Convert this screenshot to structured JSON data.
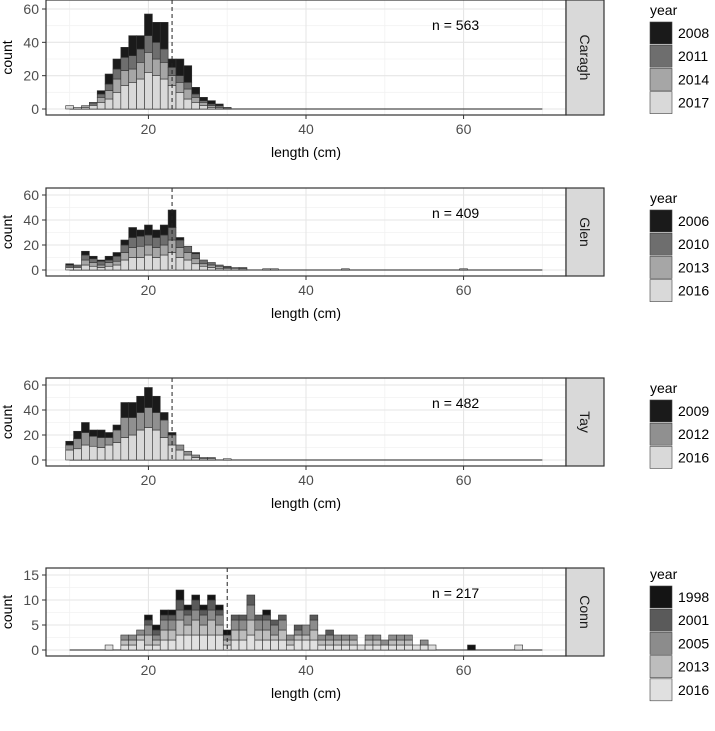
{
  "chart_data": [
    {
      "type": "bar",
      "stacked": true,
      "facet": "Caragh",
      "annotation": "n = 563",
      "xlabel": "length (cm)",
      "ylabel": "count",
      "xlim": [
        10,
        70
      ],
      "ylim": [
        0,
        60
      ],
      "xticks": [
        "20",
        "40",
        "60"
      ],
      "yticks": [
        "0",
        "20",
        "40",
        "60"
      ],
      "vline": 23,
      "legend_title": "year",
      "grid": true,
      "bin_width": 1,
      "x": [
        10,
        11,
        12,
        13,
        14,
        15,
        16,
        17,
        18,
        19,
        20,
        21,
        22,
        23,
        24,
        25,
        26,
        27,
        28,
        29,
        30,
        31
      ],
      "series": [
        {
          "name": "2017",
          "color": "#d9d9d9",
          "values": [
            2,
            1,
            1,
            2,
            4,
            6,
            10,
            14,
            16,
            18,
            22,
            20,
            18,
            14,
            10,
            6,
            4,
            2,
            1,
            0,
            0,
            0
          ]
        },
        {
          "name": "2014",
          "color": "#a6a6a6",
          "values": [
            0,
            0,
            1,
            1,
            3,
            5,
            8,
            9,
            8,
            10,
            12,
            10,
            10,
            6,
            6,
            6,
            3,
            2,
            1,
            1,
            0,
            0
          ]
        },
        {
          "name": "2011",
          "color": "#6e6e6e",
          "values": [
            0,
            0,
            0,
            1,
            2,
            4,
            6,
            8,
            8,
            8,
            10,
            10,
            8,
            5,
            4,
            4,
            2,
            1,
            1,
            1,
            1,
            0
          ]
        },
        {
          "name": "2008",
          "color": "#1a1a1a",
          "values": [
            0,
            0,
            0,
            0,
            2,
            6,
            6,
            6,
            12,
            8,
            13,
            12,
            16,
            5,
            10,
            10,
            4,
            2,
            2,
            1,
            0,
            0
          ]
        }
      ]
    },
    {
      "type": "bar",
      "stacked": true,
      "facet": "Glen",
      "annotation": "n = 409",
      "xlabel": "length (cm)",
      "ylabel": "count",
      "xlim": [
        10,
        70
      ],
      "ylim": [
        0,
        60
      ],
      "xticks": [
        "20",
        "40",
        "60"
      ],
      "yticks": [
        "0",
        "20",
        "40",
        "60"
      ],
      "vline": 23,
      "legend_title": "year",
      "grid": true,
      "bin_width": 1,
      "x": [
        10,
        11,
        12,
        13,
        14,
        15,
        16,
        17,
        18,
        19,
        20,
        21,
        22,
        23,
        24,
        25,
        26,
        27,
        28,
        29,
        30,
        31,
        32,
        33,
        34,
        35,
        36,
        37,
        38,
        39,
        40,
        41,
        42,
        43,
        44,
        45,
        46,
        47,
        48,
        49,
        50,
        51,
        52,
        53,
        54,
        55,
        56,
        57,
        58,
        59,
        60
      ],
      "series": [
        {
          "name": "2016",
          "color": "#d9d9d9",
          "values": [
            2,
            2,
            4,
            3,
            2,
            3,
            4,
            8,
            10,
            10,
            12,
            10,
            12,
            14,
            10,
            8,
            5,
            3,
            2,
            1,
            1,
            1,
            0,
            0,
            0,
            0,
            0,
            0,
            0,
            0,
            0,
            0,
            0,
            0,
            0,
            0,
            0,
            0,
            0,
            0,
            0,
            0,
            0,
            0,
            0,
            0,
            0,
            0,
            0,
            0,
            0
          ]
        },
        {
          "name": "2013",
          "color": "#a6a6a6",
          "values": [
            1,
            1,
            4,
            3,
            2,
            3,
            3,
            6,
            8,
            9,
            8,
            8,
            8,
            10,
            8,
            6,
            4,
            2,
            2,
            2,
            1,
            1,
            1,
            0,
            0,
            1,
            1,
            0,
            0,
            0,
            0,
            0,
            0,
            0,
            0,
            1,
            0,
            0,
            0,
            0,
            0,
            0,
            0,
            0,
            0,
            0,
            0,
            0,
            0,
            0,
            1
          ]
        },
        {
          "name": "2010",
          "color": "#6e6e6e",
          "values": [
            1,
            1,
            4,
            3,
            3,
            2,
            4,
            6,
            8,
            8,
            8,
            8,
            8,
            10,
            6,
            5,
            4,
            3,
            2,
            1,
            1,
            0,
            1,
            0,
            0,
            0,
            0,
            0,
            0,
            0,
            0,
            0,
            0,
            0,
            0,
            0,
            0,
            0,
            0,
            0,
            0,
            0,
            0,
            0,
            0,
            0,
            0,
            0,
            0,
            0,
            0
          ]
        },
        {
          "name": "2006",
          "color": "#1a1a1a",
          "values": [
            1,
            0,
            3,
            2,
            1,
            3,
            3,
            4,
            8,
            5,
            8,
            6,
            8,
            14,
            2,
            0,
            1,
            0,
            0,
            0,
            0,
            0,
            0,
            0,
            0,
            0,
            0,
            0,
            0,
            0,
            0,
            0,
            0,
            0,
            0,
            0,
            0,
            0,
            0,
            0,
            0,
            0,
            0,
            0,
            0,
            0,
            0,
            0,
            0,
            0,
            0
          ]
        }
      ]
    },
    {
      "type": "bar",
      "stacked": true,
      "facet": "Tay",
      "annotation": "n = 482",
      "xlabel": "length (cm)",
      "ylabel": "count",
      "xlim": [
        10,
        70
      ],
      "ylim": [
        0,
        60
      ],
      "xticks": [
        "20",
        "40",
        "60"
      ],
      "yticks": [
        "0",
        "20",
        "40",
        "60"
      ],
      "vline": 23,
      "legend_title": "year",
      "grid": true,
      "bin_width": 1,
      "x": [
        10,
        11,
        12,
        13,
        14,
        15,
        16,
        17,
        18,
        19,
        20,
        21,
        22,
        23,
        24,
        25,
        26,
        27,
        28,
        29,
        30
      ],
      "series": [
        {
          "name": "2016",
          "color": "#d9d9d9",
          "values": [
            8,
            9,
            12,
            11,
            10,
            12,
            14,
            18,
            20,
            24,
            26,
            24,
            18,
            12,
            8,
            4,
            2,
            1,
            1,
            0,
            1
          ]
        },
        {
          "name": "2012",
          "color": "#909090",
          "values": [
            4,
            8,
            10,
            8,
            8,
            6,
            10,
            16,
            14,
            14,
            16,
            14,
            14,
            8,
            4,
            3,
            2,
            1,
            1,
            0,
            0
          ]
        },
        {
          "name": "2009",
          "color": "#1a1a1a",
          "values": [
            3,
            6,
            8,
            5,
            6,
            4,
            4,
            12,
            12,
            13,
            16,
            13,
            6,
            2,
            0,
            0,
            0,
            0,
            0,
            0,
            0
          ]
        }
      ]
    },
    {
      "type": "bar",
      "stacked": true,
      "facet": "Conn",
      "annotation": "n = 217",
      "xlabel": "length (cm)",
      "ylabel": "count",
      "xlim": [
        10,
        70
      ],
      "ylim": [
        0,
        15
      ],
      "xticks": [
        "20",
        "40",
        "60"
      ],
      "yticks": [
        "0",
        "5",
        "10",
        "15"
      ],
      "vline": 30,
      "legend_title": "year",
      "grid": true,
      "bin_width": 1,
      "x": [
        15,
        16,
        17,
        18,
        19,
        20,
        21,
        22,
        23,
        24,
        25,
        26,
        27,
        28,
        29,
        30,
        31,
        32,
        33,
        34,
        35,
        36,
        37,
        38,
        39,
        40,
        41,
        42,
        43,
        44,
        45,
        46,
        47,
        48,
        49,
        50,
        51,
        52,
        53,
        54,
        55,
        56,
        57,
        58,
        59,
        60,
        61,
        62,
        63,
        64,
        65,
        66,
        67
      ],
      "series": [
        {
          "name": "2016",
          "color": "#e0e0e0",
          "values": [
            1,
            0,
            1,
            1,
            2,
            1,
            1,
            2,
            2,
            3,
            3,
            3,
            3,
            3,
            3,
            1,
            2,
            2,
            3,
            2,
            2,
            2,
            2,
            1,
            2,
            2,
            2,
            1,
            1,
            1,
            1,
            1,
            1,
            1,
            1,
            1,
            1,
            1,
            1,
            1,
            1,
            1,
            0,
            0,
            0,
            0,
            0,
            0,
            0,
            0,
            0,
            0,
            1
          ]
        },
        {
          "name": "2013",
          "color": "#bdbdbd",
          "values": [
            0,
            0,
            1,
            1,
            1,
            2,
            1,
            2,
            2,
            3,
            2,
            3,
            2,
            3,
            2,
            1,
            2,
            2,
            3,
            2,
            2,
            1,
            2,
            1,
            1,
            1,
            2,
            1,
            1,
            1,
            1,
            1,
            0,
            1,
            1,
            0,
            1,
            1,
            1,
            0,
            0,
            0,
            0,
            0,
            0,
            0,
            0,
            0,
            0,
            0,
            0,
            0,
            0
          ]
        },
        {
          "name": "2005",
          "color": "#8c8c8c",
          "values": [
            0,
            0,
            1,
            1,
            1,
            2,
            1,
            2,
            2,
            2,
            2,
            2,
            2,
            2,
            2,
            1,
            2,
            2,
            3,
            2,
            2,
            2,
            2,
            1,
            1,
            2,
            2,
            1,
            1,
            1,
            1,
            1,
            0,
            1,
            1,
            1,
            1,
            1,
            1,
            0,
            1,
            0,
            0,
            0,
            0,
            0,
            0,
            0,
            0,
            0,
            0,
            0,
            0
          ]
        },
        {
          "name": "2001",
          "color": "#5a5a5a",
          "values": [
            0,
            0,
            0,
            0,
            0,
            1,
            1,
            1,
            1,
            2,
            1,
            2,
            1,
            2,
            1,
            0,
            1,
            1,
            2,
            1,
            1,
            1,
            1,
            0,
            1,
            0,
            1,
            0,
            1,
            0,
            0,
            0,
            0,
            0,
            0,
            0,
            0,
            0,
            0,
            0,
            0,
            0,
            0,
            0,
            0,
            0,
            0,
            0,
            0,
            0,
            0,
            0,
            0
          ]
        },
        {
          "name": "1998",
          "color": "#141414",
          "values": [
            0,
            0,
            0,
            0,
            0,
            1,
            1,
            1,
            1,
            2,
            1,
            1,
            1,
            1,
            1,
            1,
            0,
            0,
            0,
            0,
            1,
            0,
            0,
            0,
            0,
            0,
            0,
            0,
            0,
            0,
            0,
            0,
            0,
            0,
            0,
            0,
            0,
            0,
            0,
            0,
            0,
            0,
            0,
            0,
            0,
            0,
            1,
            0,
            0,
            0,
            0,
            0,
            0
          ]
        }
      ]
    }
  ]
}
